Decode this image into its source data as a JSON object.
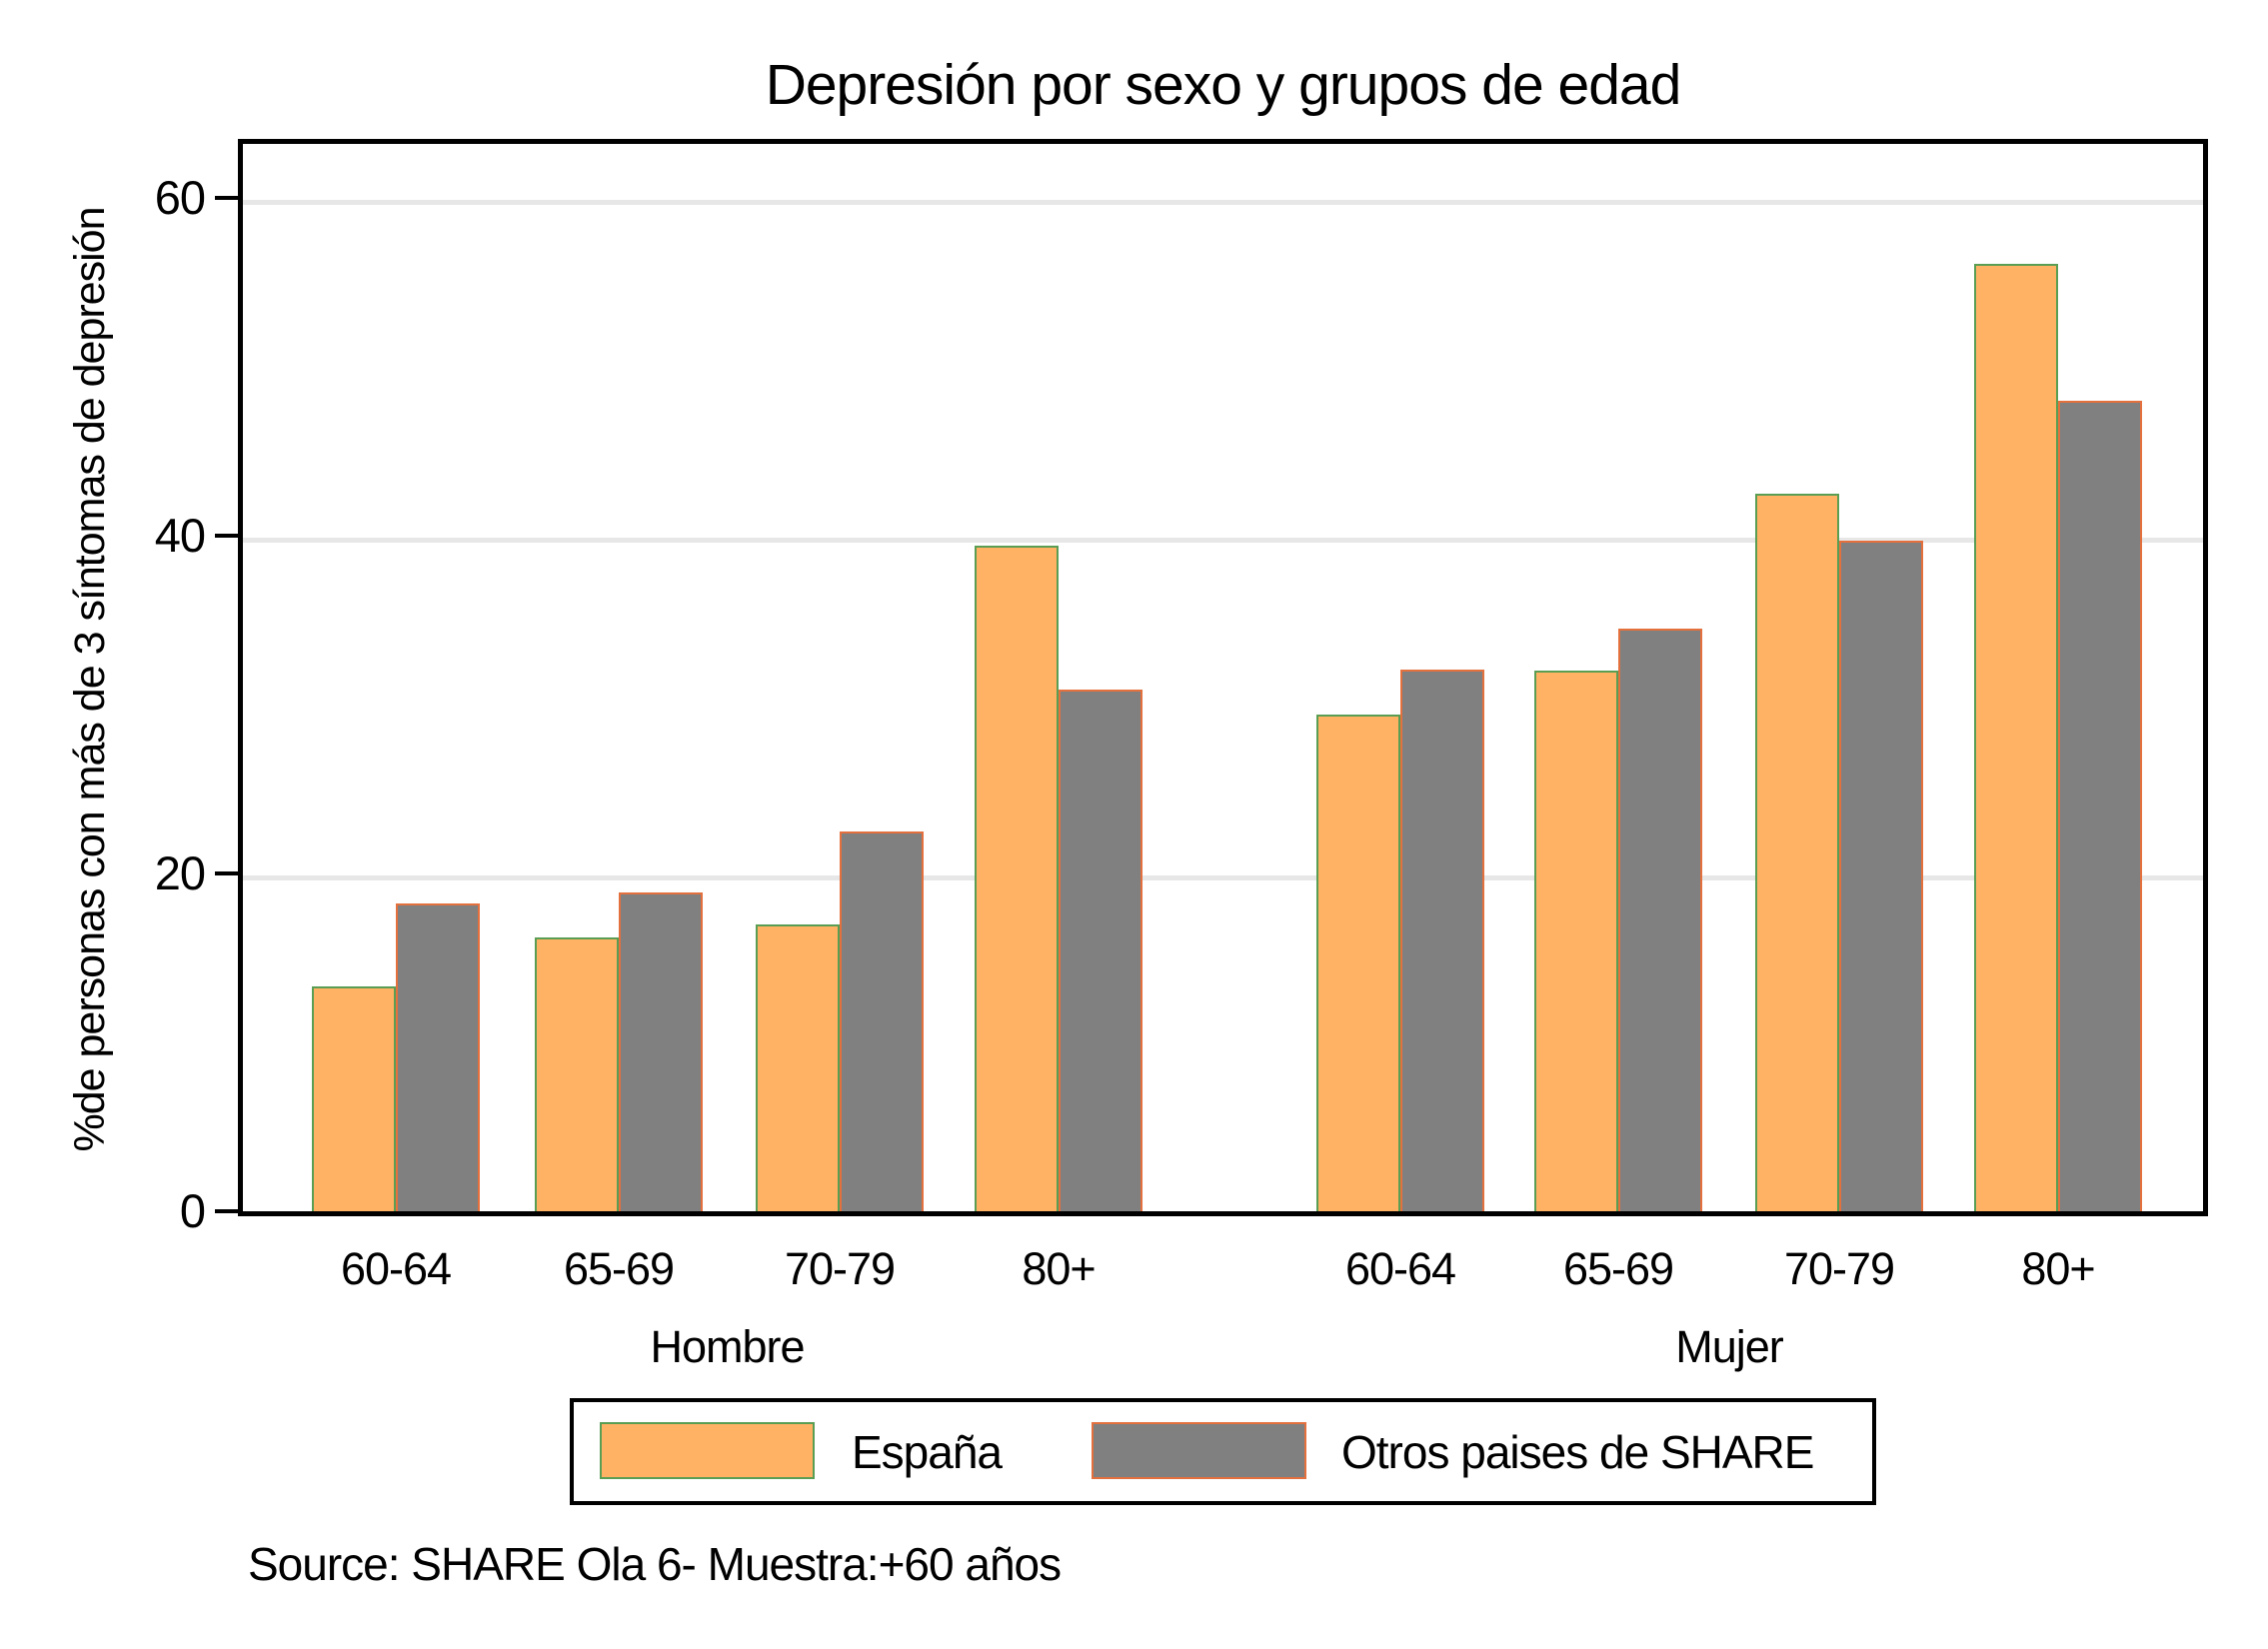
{
  "title": "Depresión por sexo y grupos de edad",
  "y_axis": {
    "label": "%de personas con más de 3 síntomas de depresión",
    "ticks": [
      0,
      20,
      40,
      60
    ]
  },
  "x_axis": {
    "group_labels": [
      "Hombre",
      "Mujer"
    ],
    "categories": [
      "60-64",
      "65-69",
      "70-79",
      "80+"
    ]
  },
  "legend": {
    "items": [
      {
        "label": "España",
        "fill": "#ffb164",
        "border": "#5a9e54"
      },
      {
        "label": "Otros paises de SHARE",
        "fill": "#808080",
        "border": "#e4703e"
      }
    ]
  },
  "source": "Source: SHARE Ola 6- Muestra:+60 años",
  "colors": {
    "espana_fill": "#ffb164",
    "espana_border": "#5a9e54",
    "otros_fill": "#808080",
    "otros_border": "#e4703e",
    "gridline": "#e7e7e7",
    "axis": "#000000"
  },
  "chart_data": {
    "type": "bar",
    "title": "Depresión por sexo y grupos de edad",
    "ylabel": "%de personas con más de 3 síntomas de depresión",
    "xlabel": "",
    "categories": [
      "60-64",
      "65-69",
      "70-79",
      "80+"
    ],
    "groups": [
      {
        "label": "Hombre",
        "series": [
          {
            "name": "España",
            "values": [
              13.3,
              16.2,
              17.0,
              39.4
            ]
          },
          {
            "name": "Otros paises de SHARE",
            "values": [
              18.2,
              18.9,
              22.5,
              30.9
            ]
          }
        ]
      },
      {
        "label": "Mujer",
        "series": [
          {
            "name": "España",
            "values": [
              29.4,
              32.0,
              42.5,
              56.1
            ]
          },
          {
            "name": "Otros paises de SHARE",
            "values": [
              32.1,
              34.5,
              39.7,
              48.0
            ]
          }
        ]
      }
    ],
    "ylim": [
      0,
      64
    ],
    "yticks": [
      0,
      20,
      40,
      60
    ],
    "grid": true,
    "legend_position": "bottom"
  }
}
